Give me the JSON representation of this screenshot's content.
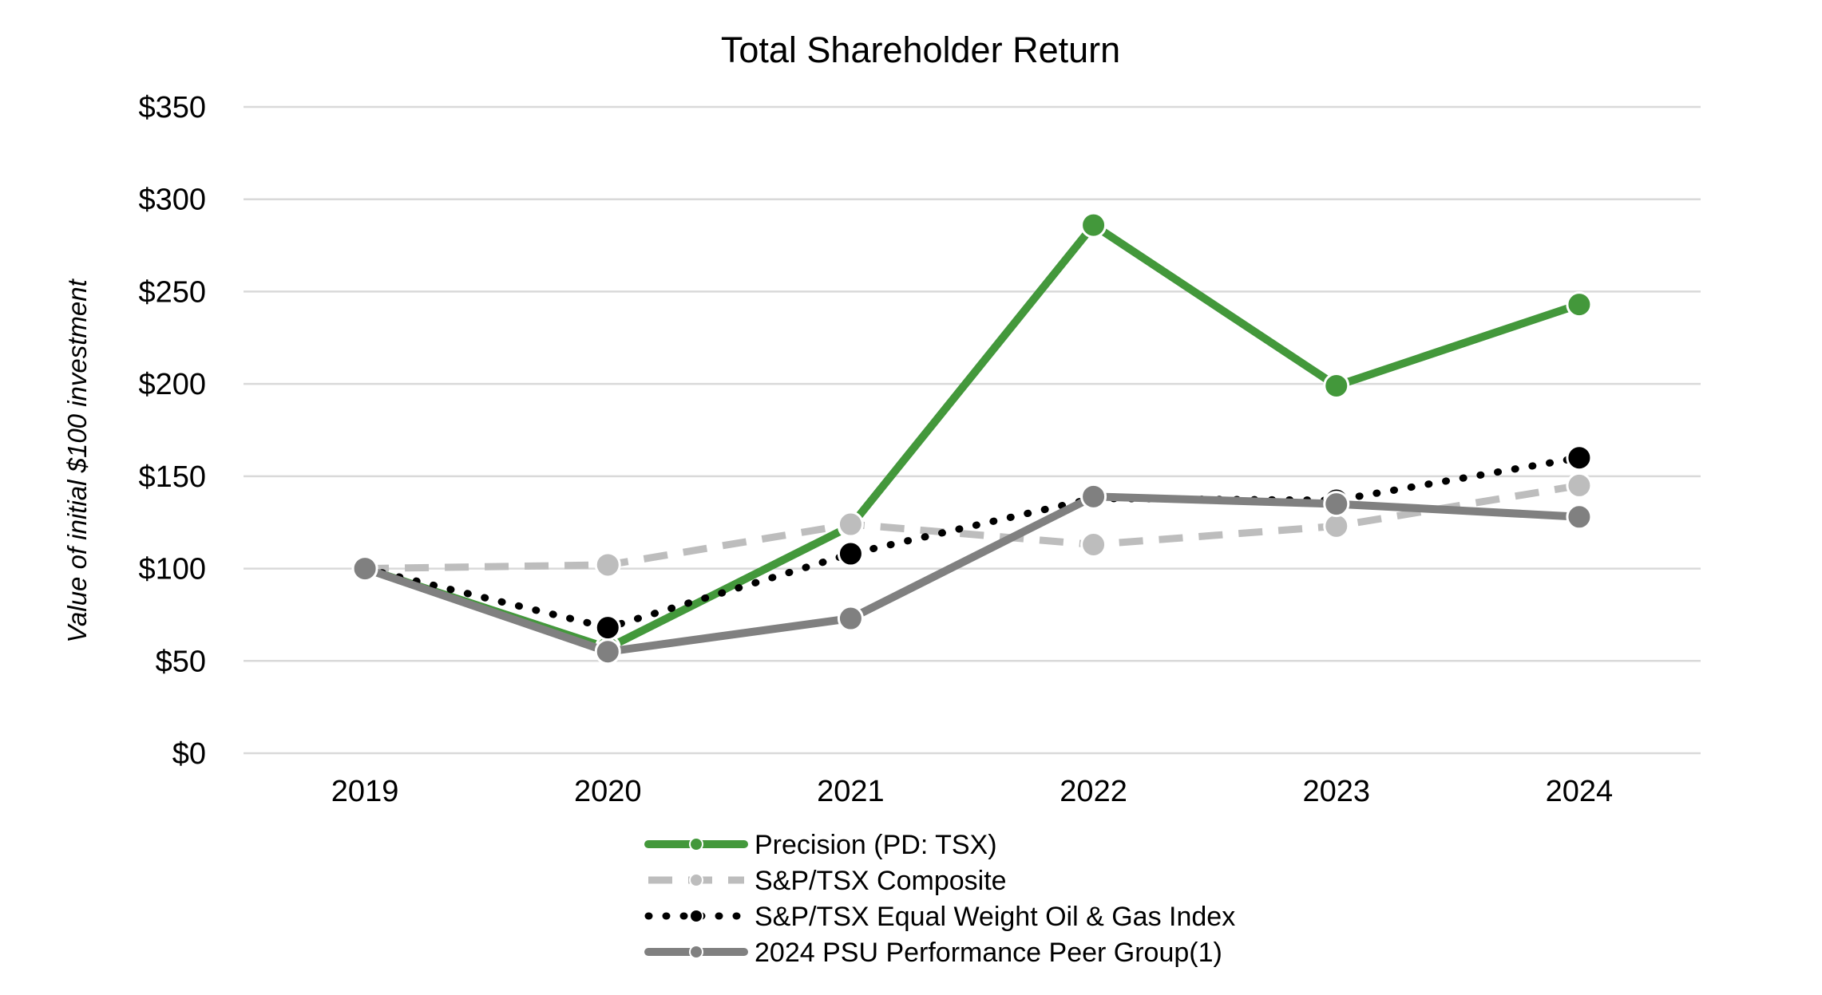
{
  "chart_data": {
    "type": "line",
    "title": "Total Shareholder Return",
    "xlabel": "",
    "ylabel": "Value of initial $100 investment",
    "x": [
      "2019",
      "2020",
      "2021",
      "2022",
      "2023",
      "2024"
    ],
    "ylim": [
      0,
      350
    ],
    "yticks": [
      0,
      50,
      100,
      150,
      200,
      250,
      300,
      350
    ],
    "ytick_labels": [
      "$0",
      "$50",
      "$100",
      "$150",
      "$200",
      "$250",
      "$300",
      "$350"
    ],
    "grid": true,
    "legend_position": "bottom-center",
    "series": [
      {
        "name": "Precision (PD: TSX)",
        "values": [
          100,
          57,
          123,
          286,
          199,
          243
        ],
        "color": "#43983B",
        "style": "solid"
      },
      {
        "name": "S&P/TSX Composite",
        "values": [
          100,
          102,
          124,
          113,
          123,
          145
        ],
        "color": "#BDBDBD",
        "style": "dashed"
      },
      {
        "name": "S&P/TSX Equal Weight Oil & Gas Index",
        "values": [
          100,
          68,
          108,
          138,
          137,
          160
        ],
        "color": "#000000",
        "style": "dotted"
      },
      {
        "name": "2024 PSU Performance Peer Group(1)",
        "values": [
          100,
          55,
          73,
          139,
          135,
          128
        ],
        "color": "#808080",
        "style": "solid"
      }
    ]
  }
}
